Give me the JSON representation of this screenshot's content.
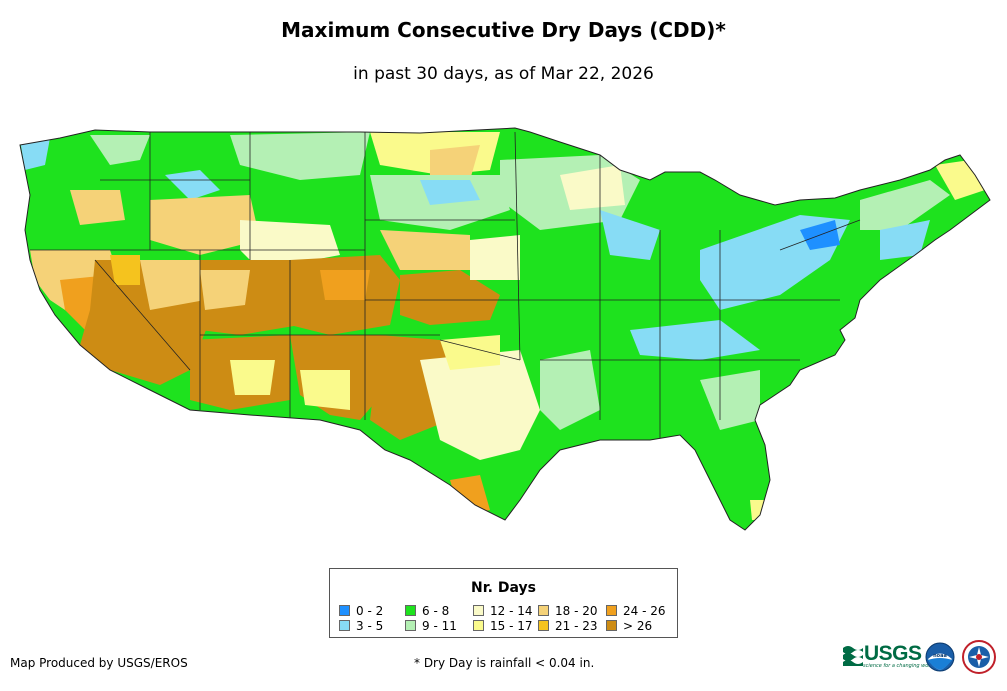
{
  "title": "Maximum Consecutive Dry Days (CDD)*",
  "subtitle": "in past 30 days, as of Mar 22, 2026",
  "legend": {
    "title": "Nr. Days",
    "items": [
      {
        "label": "0 - 2",
        "color": "#1e90ff"
      },
      {
        "label": "3 - 5",
        "color": "#87dcf5"
      },
      {
        "label": "6 - 8",
        "color": "#1ee21e"
      },
      {
        "label": "9 - 11",
        "color": "#b4f0b4"
      },
      {
        "label": "12 - 14",
        "color": "#fafac8"
      },
      {
        "label": "15 - 17",
        "color": "#fafa8c"
      },
      {
        "label": "18 - 20",
        "color": "#f5d278"
      },
      {
        "label": "21 - 23",
        "color": "#f5c31e"
      },
      {
        "label": "24 - 26",
        "color": "#f0a01e"
      },
      {
        "label": "> 26",
        "color": "#cd8c14"
      }
    ]
  },
  "footer": {
    "produced_by": "Map Produced by USGS/EROS",
    "note": "* Dry Day is rainfall < 0.04 in."
  },
  "logos": {
    "usgs": "USGS",
    "usgs_tagline": "science for a changing world",
    "noaa": "noaa"
  },
  "icons": [
    "usgs-logo-icon",
    "noaa-logo-icon",
    "nws-logo-icon"
  ]
}
